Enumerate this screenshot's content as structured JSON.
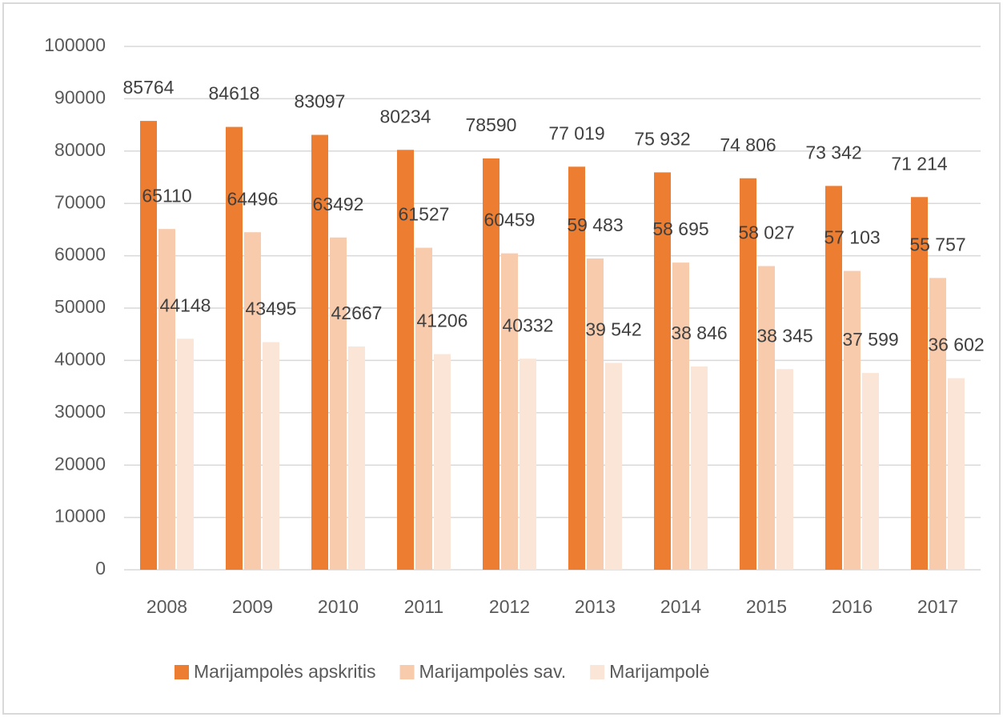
{
  "chart_data": {
    "type": "bar",
    "categories": [
      "2008",
      "2009",
      "2010",
      "2011",
      "2012",
      "2013",
      "2014",
      "2015",
      "2016",
      "2017"
    ],
    "series": [
      {
        "name": "Marijampolės apskritis",
        "color": "#ed7d31",
        "values": [
          85764,
          84618,
          83097,
          80234,
          78590,
          77019,
          75932,
          74806,
          73342,
          71214
        ],
        "value_labels": [
          "85764",
          "84618",
          "83097",
          "80234",
          "78590",
          "77 019",
          "75 932",
          "74 806",
          "73 342",
          "71 214"
        ]
      },
      {
        "name": "Marijampolės sav.",
        "color": "#f8cbad",
        "values": [
          65110,
          64496,
          63492,
          61527,
          60459,
          59483,
          58695,
          58027,
          57103,
          55757
        ],
        "value_labels": [
          "65110",
          "64496",
          "63492",
          "61527",
          "60459",
          "59 483",
          "58 695",
          "58 027",
          "57 103",
          "55 757"
        ]
      },
      {
        "name": "Marijampolė",
        "color": "#fbe5d6",
        "values": [
          44148,
          43495,
          42667,
          41206,
          40332,
          39542,
          38846,
          38345,
          37599,
          36602
        ],
        "value_labels": [
          "44148",
          "43495",
          "42667",
          "41206",
          "40332",
          "39 542",
          "38 846",
          "38 345",
          "37 599",
          "36 602"
        ]
      }
    ],
    "ylim": [
      0,
      100000
    ],
    "yticks": [
      0,
      10000,
      20000,
      30000,
      40000,
      50000,
      60000,
      70000,
      80000,
      90000,
      100000
    ],
    "grid": true,
    "legend": "bottom"
  }
}
